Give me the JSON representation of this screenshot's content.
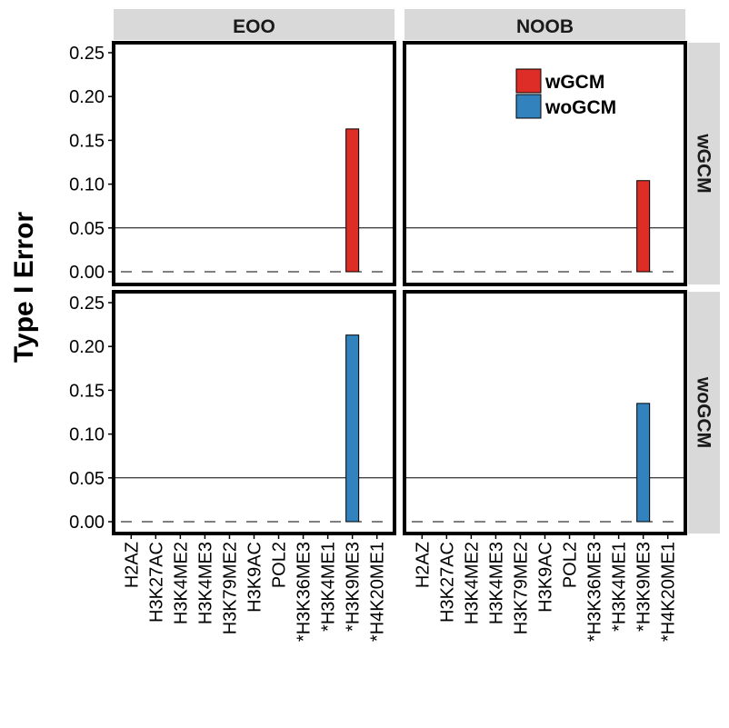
{
  "chart_data": {
    "type": "bar",
    "ylabel": "Type I Error",
    "xlabel": "",
    "ylim": [
      0,
      0.26
    ],
    "yticks": [
      "0.00",
      "0.05",
      "0.10",
      "0.15",
      "0.20",
      "0.25"
    ],
    "reference_lines": {
      "solid": 0.05,
      "dashed": 0.0
    },
    "categories": [
      "H2AZ",
      "H3K27AC",
      "H3K4ME2",
      "H3K4ME3",
      "H3K79ME2",
      "H3K9AC",
      "POL2",
      "*H3K36ME3",
      "*H3K4ME1",
      "*H3K9ME3",
      "*H4K20ME1"
    ],
    "facet_columns": [
      "EOO",
      "NOOB"
    ],
    "facet_rows": [
      "wGCM",
      "woGCM"
    ],
    "legend": {
      "placement": "top-right",
      "entries": [
        {
          "name": "wGCM",
          "color": "#de2d26"
        },
        {
          "name": "woGCM",
          "color": "#3182bd"
        }
      ]
    },
    "panels": [
      {
        "column": "EOO",
        "row": "wGCM",
        "series": "wGCM",
        "values": [
          0,
          0,
          0,
          0,
          0,
          0,
          0,
          0,
          0,
          0.163,
          0
        ]
      },
      {
        "column": "NOOB",
        "row": "wGCM",
        "series": "wGCM",
        "values": [
          0,
          0,
          0,
          0,
          0,
          0,
          0,
          0,
          0,
          0.104,
          0
        ]
      },
      {
        "column": "EOO",
        "row": "woGCM",
        "series": "woGCM",
        "values": [
          0,
          0,
          0,
          0,
          0,
          0,
          0,
          0,
          0,
          0.213,
          0
        ]
      },
      {
        "column": "NOOB",
        "row": "woGCM",
        "series": "woGCM",
        "values": [
          0,
          0,
          0,
          0,
          0,
          0,
          0,
          0,
          0,
          0.135,
          0
        ]
      }
    ]
  }
}
